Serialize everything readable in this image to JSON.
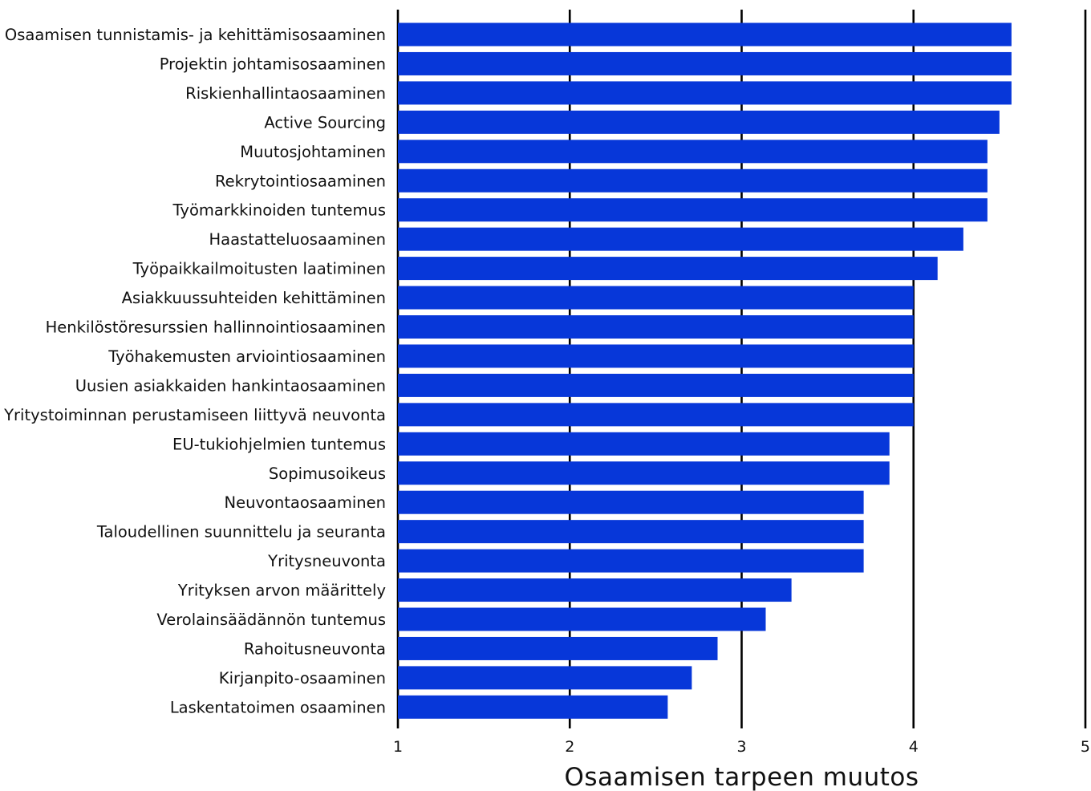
{
  "chart_data": {
    "type": "bar",
    "orientation": "horizontal",
    "categories": [
      "Osaamisen tunnistamis- ja kehittämisosaaminen",
      "Projektin johtamisosaaminen",
      "Riskienhallintaosaaminen",
      "Active Sourcing",
      "Muutosjohtaminen",
      "Rekrytointiosaaminen",
      "Työmarkkinoiden tuntemus",
      "Haastatteluosaaminen",
      "Työpaikkailmoitusten laatiminen",
      "Asiakkuussuhteiden kehittäminen",
      "Henkilöstöresurssien hallinnointiosaaminen",
      "Työhakemusten arviointiosaaminen",
      "Uusien asiakkaiden hankintaosaaminen",
      "Yritystoiminnan perustamiseen liittyvä neuvonta",
      "EU-tukiohjelmien tuntemus",
      "Sopimusoikeus",
      "Neuvontaosaaminen",
      "Taloudellinen suunnittelu ja seuranta",
      "Yritysneuvonta",
      "Yrityksen arvon määrittely",
      "Verolainsäädännön tuntemus",
      "Rahoitusneuvonta",
      "Kirjanpito-osaaminen",
      "Laskentatoimen osaaminen"
    ],
    "values": [
      4.57,
      4.57,
      4.57,
      4.5,
      4.43,
      4.43,
      4.43,
      4.29,
      4.14,
      4.0,
      4.0,
      4.0,
      4.0,
      4.0,
      3.86,
      3.86,
      3.71,
      3.71,
      3.71,
      3.29,
      3.14,
      2.86,
      2.71,
      2.57
    ],
    "xlabel": "Osaamisen tarpeen muutos",
    "xlim": [
      1,
      5
    ],
    "xticks": [
      "1",
      "2",
      "3",
      "4",
      "5"
    ],
    "grid": true,
    "bar_color": "#0737d9",
    "grid_color": "#000000"
  }
}
